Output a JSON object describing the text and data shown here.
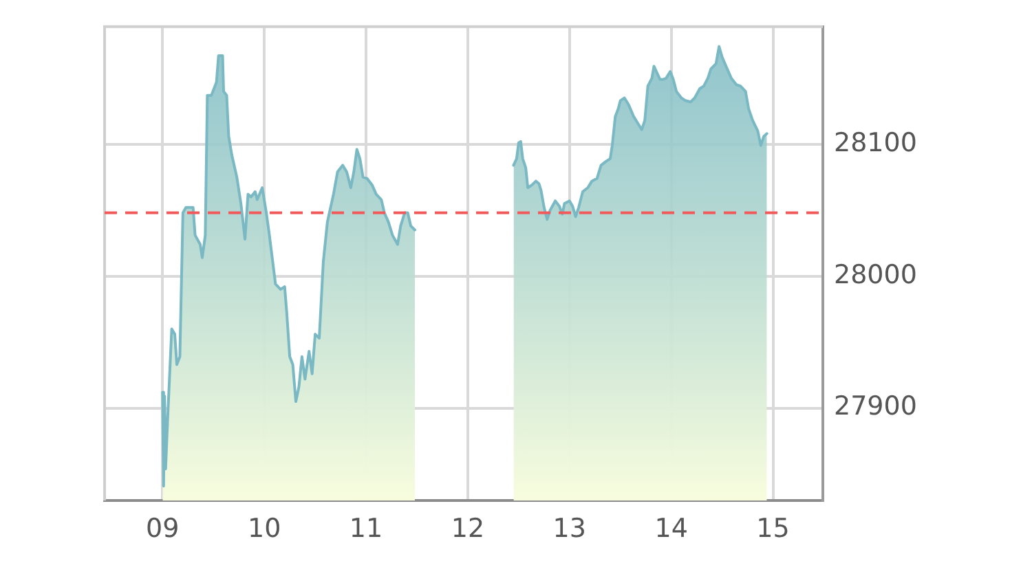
{
  "chart_data": {
    "type": "area",
    "color": "#7ab9c4",
    "x": [
      9.0,
      9.01,
      9.02,
      9.03,
      9.05,
      9.09,
      9.12,
      9.14,
      9.17,
      9.2,
      9.23,
      9.3,
      9.32,
      9.37,
      9.39,
      9.42,
      9.44,
      9.48,
      9.53,
      9.55,
      9.59,
      9.6,
      9.63,
      9.65,
      9.68,
      9.73,
      9.77,
      9.81,
      9.84,
      9.87,
      9.91,
      9.93,
      9.98,
      10.02,
      10.05,
      10.11,
      10.16,
      10.2,
      10.22,
      10.25,
      10.28,
      10.31,
      10.34,
      10.37,
      10.4,
      10.44,
      10.47,
      10.5,
      10.54,
      10.58,
      10.62,
      10.68,
      10.72,
      10.77,
      10.81,
      10.85,
      10.88,
      10.91,
      10.94,
      10.97,
      11.01,
      11.06,
      11.1,
      11.15,
      11.18,
      11.22,
      11.26,
      11.31,
      11.34,
      11.38,
      11.41,
      11.44,
      11.48,
      12.0,
      12.45,
      12.48,
      12.5,
      12.52,
      12.54,
      12.57,
      12.59,
      12.63,
      12.67,
      12.7,
      12.72,
      12.75,
      12.78,
      12.81,
      12.86,
      12.9,
      12.93,
      12.95,
      13.0,
      13.03,
      13.06,
      13.09,
      13.13,
      13.18,
      13.22,
      13.27,
      13.31,
      13.36,
      13.4,
      13.42,
      13.45,
      13.48,
      13.5,
      13.54,
      13.58,
      13.63,
      13.67,
      13.71,
      13.74,
      13.77,
      13.81,
      13.83,
      13.86,
      13.89,
      13.92,
      13.95,
      13.99,
      14.02,
      14.05,
      14.1,
      14.14,
      14.19,
      14.23,
      14.28,
      14.32,
      14.36,
      14.39,
      14.44,
      14.47,
      14.5,
      14.55,
      14.59,
      14.64,
      14.68,
      14.73,
      14.76,
      14.8,
      14.85,
      14.88,
      14.91,
      14.94
    ],
    "values": [
      27912,
      27841,
      27909,
      27854,
      27892,
      27960,
      27956,
      27933,
      27939,
      28048,
      28052,
      28052,
      28031,
      28024,
      28014,
      28031,
      28137,
      28137,
      28147,
      28167,
      28167,
      28140,
      28137,
      28106,
      28092,
      28075,
      28055,
      28028,
      28062,
      28060,
      28064,
      28058,
      28067,
      28048,
      28031,
      27994,
      27990,
      27992,
      27973,
      27939,
      27933,
      27905,
      27916,
      27939,
      27922,
      27943,
      27926,
      27956,
      27953,
      28011,
      28041,
      28062,
      28079,
      28084,
      28079,
      28067,
      28079,
      28096,
      28089,
      28075,
      28074,
      28069,
      28062,
      28058,
      28048,
      28041,
      28031,
      28024,
      28038,
      28048,
      28048,
      28038,
      28035,
      null,
      28084,
      28089,
      28101,
      28102,
      28089,
      28082,
      28067,
      28069,
      28072,
      28070,
      28065,
      28052,
      28043,
      28050,
      28057,
      28053,
      28047,
      28055,
      28057,
      28053,
      28045,
      28052,
      28064,
      28067,
      28072,
      28074,
      28084,
      28087,
      28089,
      28099,
      28121,
      28127,
      28133,
      28135,
      28130,
      28121,
      28116,
      28111,
      28118,
      28144,
      28150,
      28159,
      28154,
      28149,
      28149,
      28150,
      28155,
      28149,
      28140,
      28135,
      28133,
      28132,
      28135,
      28142,
      28144,
      28150,
      28157,
      28161,
      28174,
      28166,
      28157,
      28150,
      28145,
      28144,
      28140,
      28127,
      28118,
      28110,
      28099,
      28106,
      28108
    ],
    "xlim": [
      8.43,
      15.49
    ],
    "ylim": [
      27830,
      28189
    ],
    "xticks": [
      {
        "value": 9,
        "label": "09"
      },
      10,
      11,
      12,
      13,
      14,
      15
    ],
    "yticks": [
      27900,
      28000,
      28100
    ],
    "grid": true,
    "ref_lines": [
      {
        "axis": "y",
        "value": 28048,
        "color": "#f05a5a",
        "line_style": "dashed"
      }
    ]
  }
}
